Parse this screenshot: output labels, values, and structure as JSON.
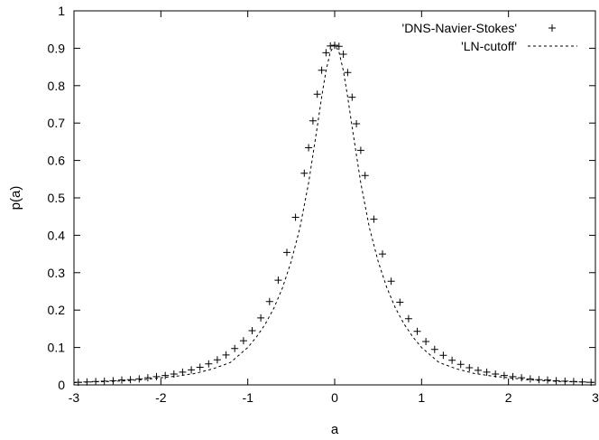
{
  "chart_data": {
    "type": "line",
    "title": "",
    "xlabel": "a",
    "ylabel": "p(a)",
    "xlim": [
      -3,
      3
    ],
    "ylim": [
      0,
      1
    ],
    "grid": false,
    "legend_position": "top-right",
    "x_ticks": [
      "-3",
      "-2",
      "-1",
      "0",
      "1",
      "2",
      "3"
    ],
    "y_ticks": [
      "0",
      "0.1",
      "0.2",
      "0.3",
      "0.4",
      "0.5",
      "0.6",
      "0.7",
      "0.8",
      "0.9",
      "1"
    ],
    "series": [
      {
        "name": "'DNS-Navier-Stokes'",
        "style": "points-plus",
        "color": "#000000",
        "x": [
          -2.95,
          -2.85,
          -2.75,
          -2.65,
          -2.55,
          -2.45,
          -2.35,
          -2.25,
          -2.15,
          -2.05,
          -1.95,
          -1.85,
          -1.75,
          -1.65,
          -1.55,
          -1.45,
          -1.35,
          -1.25,
          -1.15,
          -1.05,
          -0.95,
          -0.85,
          -0.75,
          -0.65,
          -0.55,
          -0.45,
          -0.35,
          -0.3,
          -0.25,
          -0.2,
          -0.15,
          -0.1,
          -0.05,
          0.0,
          0.05,
          0.1,
          0.15,
          0.2,
          0.25,
          0.3,
          0.35,
          0.45,
          0.55,
          0.65,
          0.75,
          0.85,
          0.95,
          1.05,
          1.15,
          1.25,
          1.35,
          1.45,
          1.55,
          1.65,
          1.75,
          1.85,
          1.95,
          2.05,
          2.15,
          2.25,
          2.35,
          2.45,
          2.55,
          2.65,
          2.75,
          2.85,
          2.95
        ],
        "y": [
          0.007,
          0.008,
          0.009,
          0.01,
          0.011,
          0.013,
          0.014,
          0.016,
          0.019,
          0.022,
          0.025,
          0.029,
          0.034,
          0.04,
          0.047,
          0.056,
          0.067,
          0.08,
          0.097,
          0.118,
          0.145,
          0.179,
          0.223,
          0.28,
          0.354,
          0.448,
          0.566,
          0.634,
          0.706,
          0.777,
          0.841,
          0.888,
          0.906,
          0.908,
          0.905,
          0.884,
          0.835,
          0.769,
          0.698,
          0.627,
          0.56,
          0.443,
          0.35,
          0.277,
          0.221,
          0.177,
          0.143,
          0.116,
          0.095,
          0.079,
          0.066,
          0.055,
          0.046,
          0.039,
          0.034,
          0.029,
          0.025,
          0.022,
          0.019,
          0.016,
          0.014,
          0.013,
          0.011,
          0.01,
          0.009,
          0.008,
          0.007
        ]
      },
      {
        "name": "'LN-cutoff'",
        "style": "dashed-line",
        "color": "#000000",
        "x": [
          -3.0,
          -2.8,
          -2.6,
          -2.4,
          -2.2,
          -2.0,
          -1.8,
          -1.6,
          -1.4,
          -1.2,
          -1.0,
          -0.9,
          -0.8,
          -0.7,
          -0.6,
          -0.5,
          -0.4,
          -0.3,
          -0.25,
          -0.2,
          -0.15,
          -0.1,
          -0.05,
          0.0,
          0.05,
          0.1,
          0.15,
          0.2,
          0.25,
          0.3,
          0.4,
          0.5,
          0.6,
          0.7,
          0.8,
          0.9,
          1.0,
          1.2,
          1.4,
          1.6,
          1.8,
          2.0,
          2.2,
          2.4,
          2.6,
          2.8,
          3.0
        ],
        "y": [
          0.006,
          0.008,
          0.009,
          0.011,
          0.014,
          0.019,
          0.024,
          0.031,
          0.043,
          0.06,
          0.1,
          0.128,
          0.162,
          0.205,
          0.26,
          0.33,
          0.42,
          0.54,
          0.615,
          0.69,
          0.77,
          0.84,
          0.89,
          0.91,
          0.89,
          0.84,
          0.77,
          0.69,
          0.615,
          0.54,
          0.42,
          0.33,
          0.26,
          0.205,
          0.162,
          0.128,
          0.1,
          0.06,
          0.043,
          0.031,
          0.024,
          0.019,
          0.014,
          0.011,
          0.009,
          0.008,
          0.006
        ]
      }
    ]
  }
}
